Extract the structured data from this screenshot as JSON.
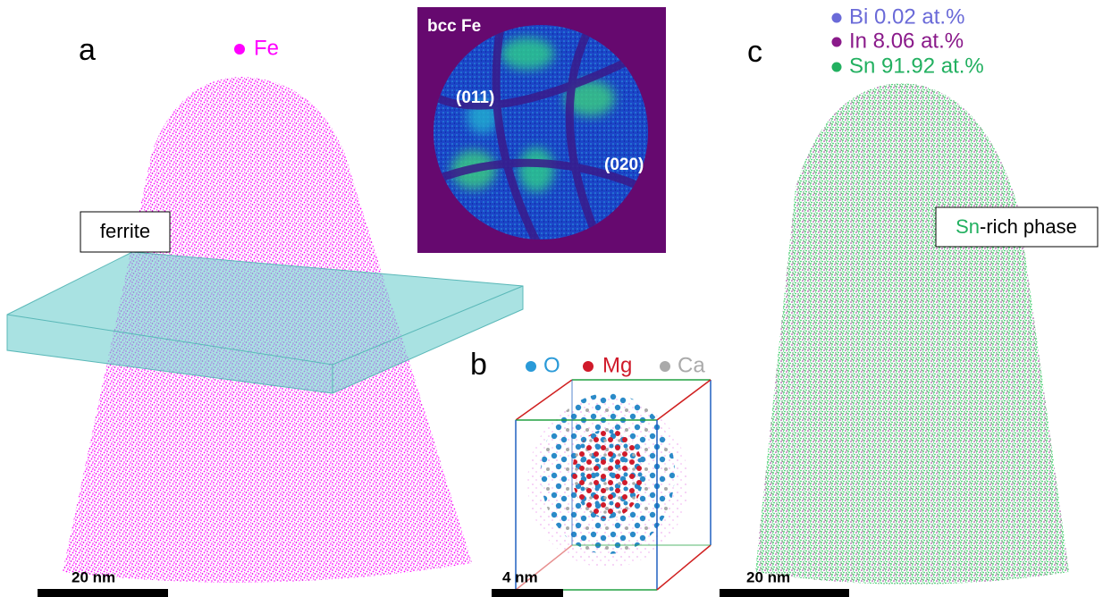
{
  "panel_a": {
    "label": "a",
    "legend": "Fe",
    "annotation": "ferrite",
    "scale_bar": "20 nm"
  },
  "inset": {
    "title": "bcc Fe",
    "planes": [
      "(011)",
      "(020)"
    ]
  },
  "panel_b": {
    "label": "b",
    "legend": [
      "O",
      "Mg",
      "Ca"
    ],
    "scale_bar": "4 nm"
  },
  "panel_c": {
    "label": "c",
    "legend": [
      "Bi 0.02 at.%",
      "In 8.06 at.%",
      "Sn 91.92 at.%"
    ],
    "annotation": {
      "highlight": "Sn",
      "text": "-rich phase"
    },
    "scale_bar": "20 nm"
  }
}
